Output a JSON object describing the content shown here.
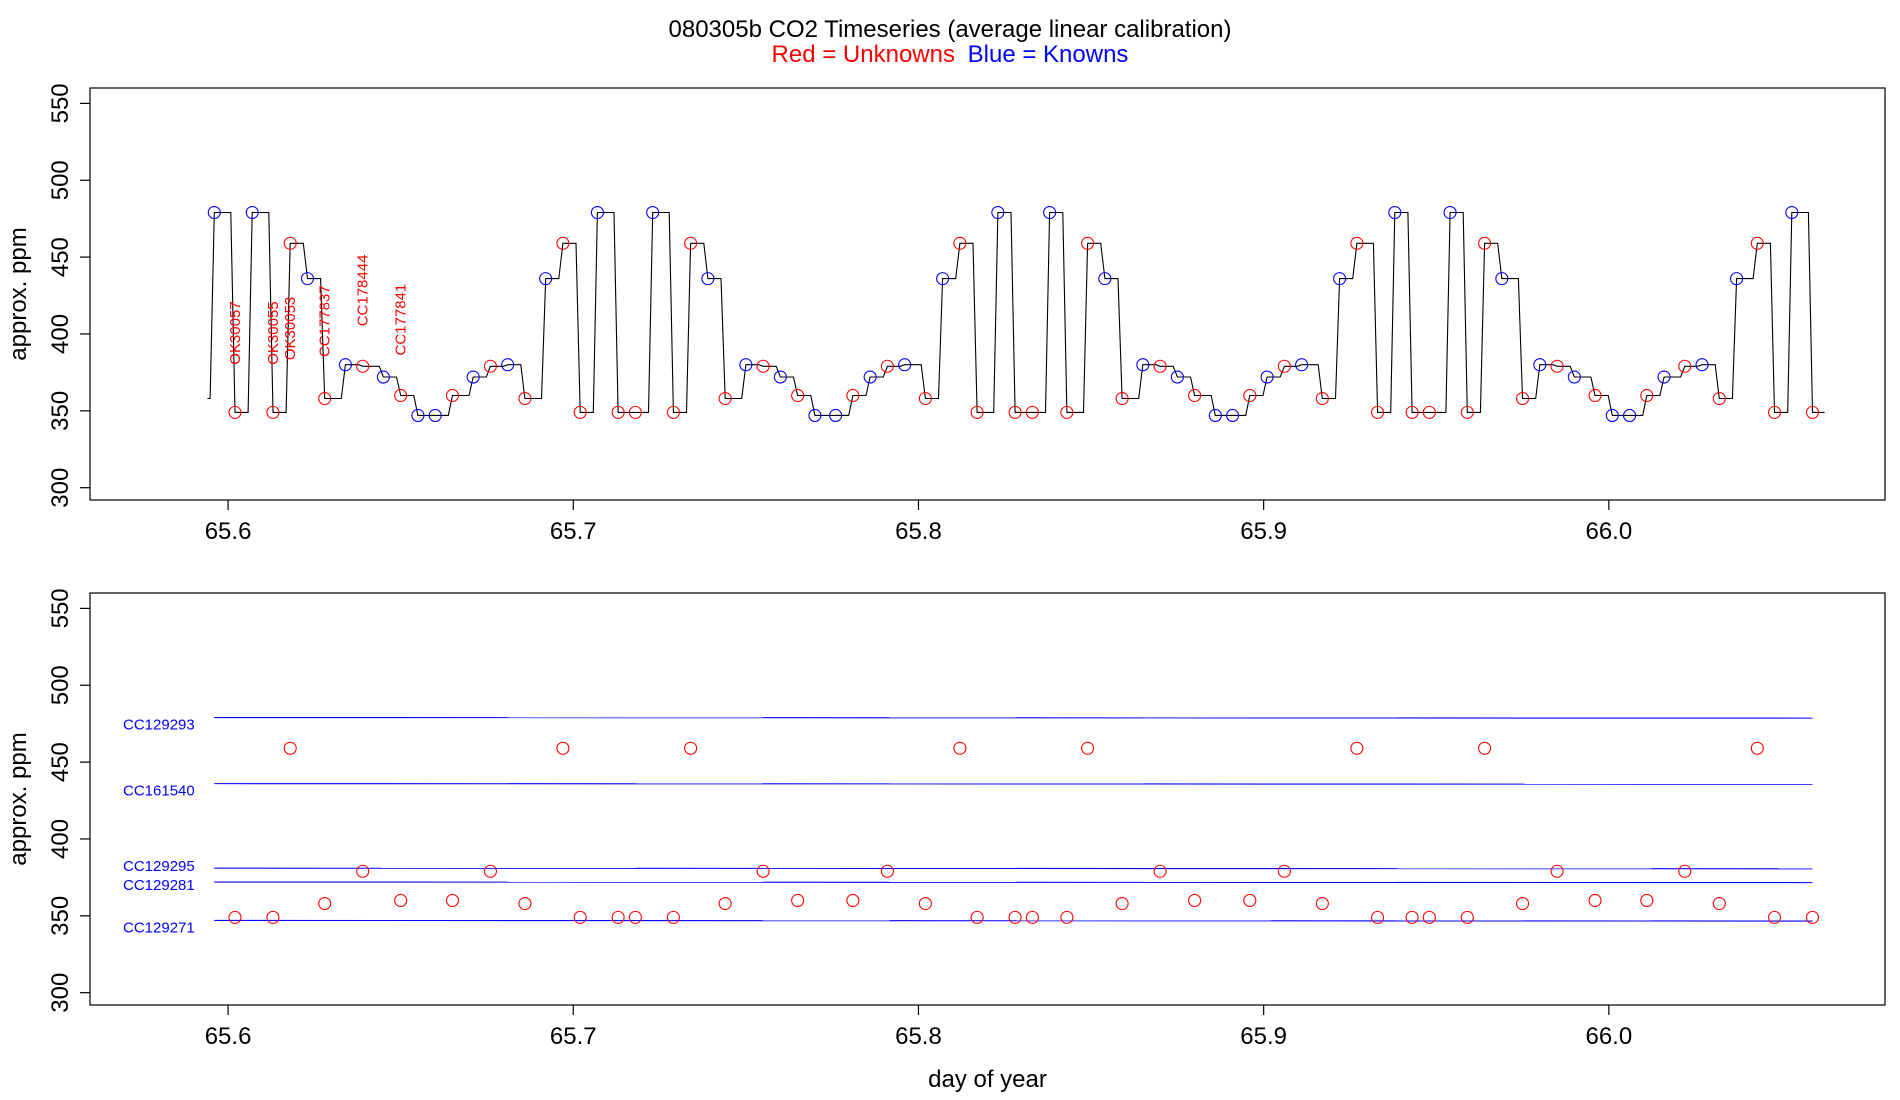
{
  "title": "080305b   CO2 Timeseries (average linear calibration)",
  "legend": {
    "red": "Red = Unknowns",
    "blue": "Blue = Knowns"
  },
  "colors": {
    "unknown": "#ff0000",
    "known": "#0000ff",
    "line": "#000000"
  },
  "chart_data": [
    {
      "type": "line",
      "panel": "top",
      "xlabel": "",
      "ylabel": "approx. ppm",
      "xlim": [
        65.56,
        66.08
      ],
      "ylim": [
        292,
        560
      ],
      "xticks": [
        65.6,
        65.7,
        65.8,
        65.9,
        66.0
      ],
      "xtick_labels": [
        "65.6",
        "65.7",
        "65.8",
        "65.9",
        "66.0"
      ],
      "yticks": [
        300,
        350,
        400,
        450,
        500,
        550
      ],
      "ytick_labels": [
        "300",
        "350",
        "400",
        "450",
        "500",
        "550"
      ],
      "trace_start": [
        65.594,
        358
      ],
      "steps": [
        [
          65.596,
          479
        ],
        [
          65.602,
          349
        ],
        [
          65.607,
          479
        ],
        [
          65.613,
          349
        ],
        [
          65.618,
          459
        ],
        [
          65.623,
          436
        ],
        [
          65.628,
          358
        ],
        [
          65.634,
          380
        ],
        [
          65.639,
          379
        ],
        [
          65.645,
          372
        ],
        [
          65.65,
          360
        ],
        [
          65.655,
          347
        ],
        [
          65.665,
          360
        ],
        [
          65.671,
          372
        ],
        [
          65.676,
          379
        ],
        [
          65.681,
          380
        ],
        [
          65.686,
          358
        ],
        [
          65.692,
          436
        ],
        [
          65.697,
          459
        ],
        [
          65.702,
          349
        ],
        [
          65.707,
          479
        ],
        [
          65.713,
          349
        ],
        [
          65.718,
          349
        ],
        [
          65.723,
          479
        ],
        [
          65.729,
          349
        ],
        [
          65.734,
          459
        ],
        [
          65.739,
          436
        ],
        [
          65.744,
          358
        ],
        [
          65.75,
          380
        ],
        [
          65.755,
          379
        ],
        [
          65.76,
          372
        ],
        [
          65.765,
          360
        ],
        [
          65.77,
          347
        ],
        [
          65.781,
          360
        ],
        [
          65.786,
          372
        ],
        [
          65.791,
          379
        ],
        [
          65.796,
          380
        ],
        [
          65.802,
          358
        ],
        [
          65.807,
          436
        ],
        [
          65.812,
          459
        ],
        [
          65.817,
          349
        ],
        [
          65.823,
          479
        ],
        [
          65.828,
          349
        ],
        [
          65.833,
          349
        ],
        [
          65.838,
          479
        ],
        [
          65.843,
          349
        ],
        [
          65.849,
          459
        ],
        [
          65.854,
          436
        ],
        [
          65.859,
          358
        ],
        [
          65.865,
          380
        ],
        [
          65.87,
          379
        ],
        [
          65.875,
          372
        ],
        [
          65.88,
          360
        ],
        [
          65.886,
          347
        ],
        [
          65.896,
          360
        ],
        [
          65.901,
          372
        ],
        [
          65.906,
          379
        ],
        [
          65.911,
          380
        ],
        [
          65.917,
          358
        ],
        [
          65.922,
          436
        ],
        [
          65.927,
          459
        ],
        [
          65.933,
          349
        ],
        [
          65.938,
          479
        ],
        [
          65.943,
          349
        ],
        [
          65.948,
          349
        ],
        [
          65.954,
          479
        ],
        [
          65.959,
          349
        ],
        [
          65.964,
          459
        ],
        [
          65.969,
          436
        ],
        [
          65.975,
          358
        ],
        [
          65.98,
          380
        ],
        [
          65.985,
          379
        ],
        [
          65.99,
          372
        ],
        [
          65.996,
          360
        ],
        [
          66.001,
          347
        ],
        [
          66.011,
          360
        ],
        [
          66.016,
          372
        ],
        [
          66.022,
          379
        ],
        [
          66.027,
          380
        ],
        [
          66.032,
          358
        ],
        [
          66.037,
          436
        ],
        [
          66.043,
          459
        ],
        [
          66.048,
          349
        ],
        [
          66.053,
          479
        ],
        [
          66.059,
          349
        ]
      ],
      "unknowns": {
        "x": [
          65.602,
          65.613,
          65.618,
          65.628,
          65.639,
          65.65,
          65.665,
          65.676,
          65.686,
          65.697,
          65.702,
          65.713,
          65.718,
          65.729,
          65.734,
          65.744,
          65.755,
          65.765,
          65.781,
          65.791,
          65.802,
          65.812,
          65.817,
          65.828,
          65.833,
          65.843,
          65.849,
          65.859,
          65.87,
          65.88,
          65.896,
          65.906,
          65.917,
          65.927,
          65.933,
          65.943,
          65.948,
          65.959,
          65.964,
          65.975,
          65.985,
          65.996,
          66.011,
          66.022,
          66.032,
          66.043,
          66.048,
          66.059
        ],
        "y": [
          349,
          349,
          459,
          358,
          379,
          360,
          360,
          379,
          358,
          459,
          349,
          349,
          349,
          349,
          459,
          358,
          379,
          360,
          360,
          379,
          358,
          459,
          349,
          349,
          349,
          349,
          459,
          358,
          379,
          360,
          360,
          379,
          358,
          459,
          349,
          349,
          349,
          349,
          459,
          358,
          379,
          360,
          360,
          379,
          358,
          459,
          349,
          349
        ]
      },
      "knowns": {
        "x": [
          65.596,
          65.607,
          65.623,
          65.634,
          65.645,
          65.655,
          65.66,
          65.671,
          65.681,
          65.692,
          65.707,
          65.723,
          65.739,
          65.75,
          65.76,
          65.77,
          65.776,
          65.786,
          65.796,
          65.807,
          65.823,
          65.838,
          65.854,
          65.865,
          65.875,
          65.886,
          65.891,
          65.901,
          65.911,
          65.922,
          65.938,
          65.954,
          65.969,
          65.98,
          65.99,
          66.001,
          66.006,
          66.016,
          66.027,
          66.037,
          66.053
        ],
        "y": [
          479,
          479,
          436,
          380,
          372,
          347,
          347,
          372,
          380,
          436,
          479,
          479,
          436,
          380,
          372,
          347,
          347,
          372,
          380,
          436,
          479,
          479,
          436,
          380,
          372,
          347,
          347,
          372,
          380,
          436,
          479,
          479,
          436,
          380,
          372,
          347,
          347,
          372,
          380,
          436,
          479
        ]
      },
      "annotations": [
        {
          "text": "OK30057",
          "x": 65.602,
          "y": 380
        },
        {
          "text": "OK30055",
          "x": 65.613,
          "y": 380
        },
        {
          "text": "OK30053",
          "x": 65.618,
          "y": 383
        },
        {
          "text": "CC177837",
          "x": 65.628,
          "y": 385
        },
        {
          "text": "CC178444",
          "x": 65.639,
          "y": 405
        },
        {
          "text": "CC177841",
          "x": 65.65,
          "y": 386
        }
      ]
    },
    {
      "type": "scatter",
      "panel": "bottom",
      "xlabel": "day of year",
      "ylabel": "approx. ppm",
      "xlim": [
        65.56,
        66.08
      ],
      "ylim": [
        292,
        560
      ],
      "xticks": [
        65.6,
        65.7,
        65.8,
        65.9,
        66.0
      ],
      "xtick_labels": [
        "65.6",
        "65.7",
        "65.8",
        "65.9",
        "66.0"
      ],
      "yticks": [
        300,
        350,
        400,
        450,
        500,
        550
      ],
      "ytick_labels": [
        "300",
        "350",
        "400",
        "450",
        "500",
        "550"
      ],
      "reference_lines": [
        {
          "name": "CC129293",
          "value": 479
        },
        {
          "name": "CC161540",
          "value": 436
        },
        {
          "name": "CC129295",
          "value": 381
        },
        {
          "name": "CC129281",
          "value": 372
        },
        {
          "name": "CC129271",
          "value": 347
        }
      ],
      "line_x_range": [
        65.596,
        66.059
      ],
      "unknowns": {
        "x": [
          65.602,
          65.613,
          65.618,
          65.628,
          65.639,
          65.65,
          65.665,
          65.676,
          65.686,
          65.697,
          65.702,
          65.713,
          65.718,
          65.729,
          65.734,
          65.744,
          65.755,
          65.765,
          65.781,
          65.791,
          65.802,
          65.812,
          65.817,
          65.828,
          65.833,
          65.843,
          65.849,
          65.859,
          65.87,
          65.88,
          65.896,
          65.906,
          65.917,
          65.927,
          65.933,
          65.943,
          65.948,
          65.959,
          65.964,
          65.975,
          65.985,
          65.996,
          66.011,
          66.022,
          66.032,
          66.043,
          66.048,
          66.059
        ],
        "y": [
          349,
          349,
          459,
          358,
          379,
          360,
          360,
          379,
          358,
          459,
          349,
          349,
          349,
          349,
          459,
          358,
          379,
          360,
          360,
          379,
          358,
          459,
          349,
          349,
          349,
          349,
          459,
          358,
          379,
          360,
          360,
          379,
          358,
          459,
          349,
          349,
          349,
          349,
          459,
          358,
          379,
          360,
          360,
          379,
          358,
          459,
          349,
          349
        ]
      }
    }
  ]
}
